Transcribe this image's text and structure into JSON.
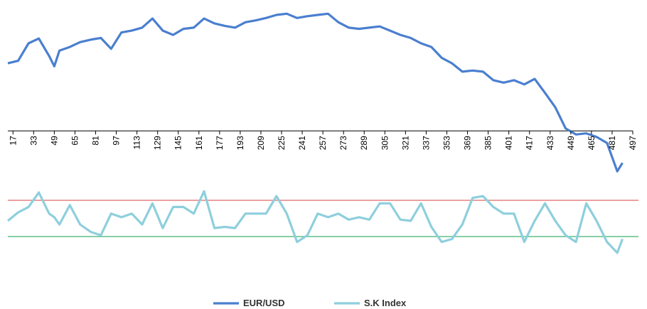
{
  "chart_data": {
    "type": "line",
    "x": [
      13,
      21,
      29,
      37,
      45,
      49,
      53,
      61,
      69,
      77,
      85,
      93,
      101,
      109,
      117,
      125,
      133,
      141,
      149,
      157,
      165,
      173,
      181,
      189,
      197,
      205,
      213,
      221,
      229,
      237,
      245,
      253,
      261,
      269,
      277,
      285,
      293,
      301,
      309,
      317,
      325,
      333,
      341,
      349,
      357,
      365,
      373,
      381,
      389,
      397,
      405,
      413,
      421,
      429,
      437,
      445,
      453,
      461,
      469,
      477,
      485,
      489
    ],
    "series": [
      {
        "name": "EUR/USD",
        "color": "#4a7fcf",
        "values": [
          307,
          311,
          340,
          348,
          319,
          302,
          328,
          334,
          342,
          346,
          349,
          331,
          358,
          361,
          366,
          381,
          361,
          354,
          364,
          366,
          381,
          373,
          369,
          366,
          375,
          378,
          382,
          387,
          389,
          382,
          385,
          387,
          389,
          375,
          366,
          364,
          366,
          368,
          361,
          354,
          349,
          340,
          334,
          316,
          307,
          293,
          295,
          293,
          279,
          275,
          279,
          272,
          281,
          258,
          234,
          199,
          189,
          191,
          185,
          175,
          128,
          142
        ]
      },
      {
        "name": "S.K Index",
        "color": "#8ecfdc",
        "values": [
          46,
          60,
          69,
          93,
          58,
          52,
          40,
          72,
          40,
          28,
          22,
          58,
          52,
          58,
          40,
          75,
          34,
          69,
          69,
          58,
          95,
          34,
          36,
          34,
          58,
          58,
          58,
          87,
          58,
          11,
          22,
          58,
          52,
          58,
          48,
          52,
          48,
          75,
          75,
          48,
          46,
          75,
          36,
          11,
          16,
          40,
          84,
          87,
          69,
          58,
          58,
          11,
          46,
          75,
          46,
          22,
          11,
          75,
          46,
          11,
          -7,
          16
        ]
      }
    ],
    "xlim": [
      13,
      497
    ],
    "xticks": [
      17,
      33,
      49,
      65,
      81,
      97,
      113,
      129,
      145,
      161,
      177,
      193,
      209,
      225,
      241,
      257,
      273,
      289,
      305,
      321,
      337,
      353,
      369,
      385,
      401,
      417,
      433,
      449,
      465,
      481,
      497
    ],
    "ylim": [
      -60,
      400
    ],
    "xaxis_crosses": 195,
    "hlines": [
      {
        "value": 80,
        "color": "#e06666"
      },
      {
        "value": 20,
        "color": "#3cb371"
      }
    ],
    "legend": "bottom"
  }
}
